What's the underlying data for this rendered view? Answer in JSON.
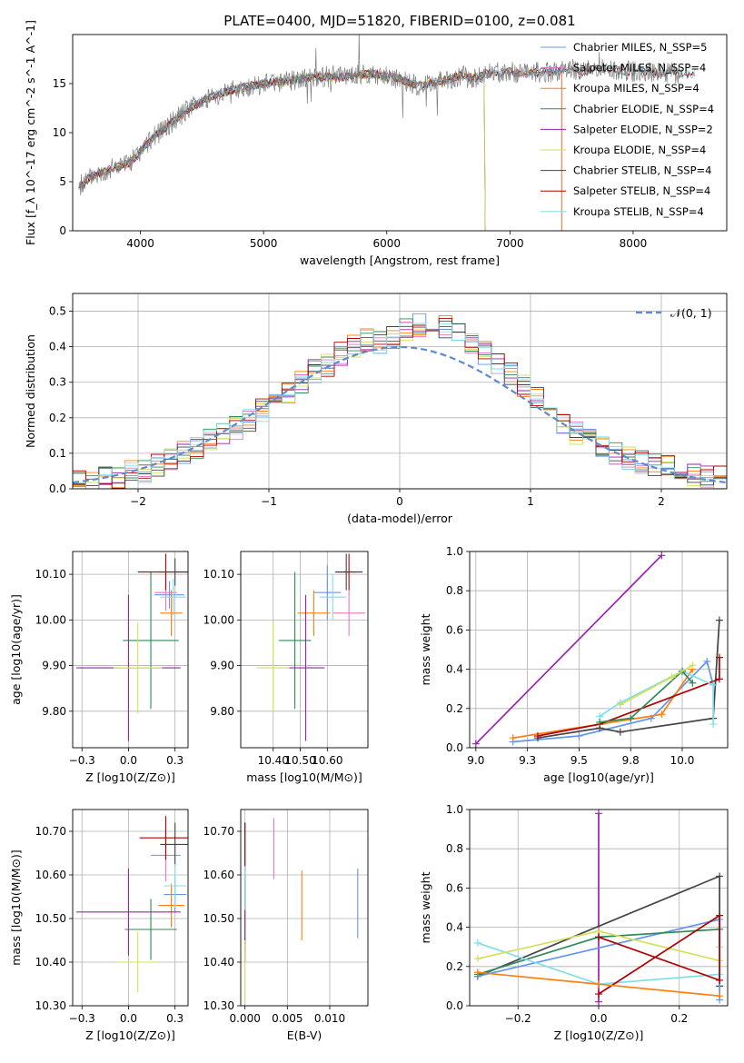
{
  "figure": {
    "title": "PLATE=0400, MJD=51820, FIBERID=0100, z=0.081"
  },
  "palette": {
    "chabrier_miles": "#6495ed",
    "salpeter_miles": "#e377c2",
    "kroupa_miles": "#ff7f0e",
    "chabrier_elodie": "#2e8b57",
    "salpeter_elodie": "#9b22b0",
    "kroupa_elodie": "#d4e157",
    "chabrier_stelib": "#444444",
    "salpeter_stelib": "#b00000",
    "kroupa_stelib": "#80deea",
    "data_spectrum": "#808080",
    "gaussian": "#5b8bd0"
  },
  "chart_data": [
    {
      "id": "spectrum",
      "type": "line",
      "xlabel": "wavelength [Angstrom, rest frame]",
      "ylabel": "Flux [f_λ 10^-17 erg cm^-2 s^-1 A^-1]",
      "xlim": [
        3450,
        8760
      ],
      "ylim": [
        0,
        20
      ],
      "xticks": [
        4000,
        5000,
        6000,
        7000,
        8000
      ],
      "yticks": [
        0,
        5,
        10,
        15
      ],
      "grid": false,
      "legend": "top-right",
      "data_spectrum": {
        "x": [
          3500,
          3600,
          3700,
          3800,
          3900,
          4000,
          4100,
          4200,
          4300,
          4400,
          4500,
          4600,
          4700,
          4800,
          4900,
          5000,
          5100,
          5200,
          5300,
          5400,
          5500,
          5600,
          5700,
          5800,
          5900,
          6000,
          6100,
          6200,
          6300,
          6400,
          6500,
          6600,
          6700,
          6800,
          6900,
          7000,
          7100,
          7200,
          7300,
          7400,
          7500,
          7600,
          7700,
          7800,
          7900,
          8000,
          8100,
          8200,
          8300,
          8400
        ],
        "y": [
          4.5,
          5.5,
          6.0,
          6.5,
          6.8,
          8.0,
          9.5,
          10.5,
          11.5,
          12.5,
          13.2,
          13.8,
          14.2,
          14.5,
          14.8,
          15.0,
          15.2,
          15.3,
          15.5,
          15.6,
          15.7,
          15.6,
          15.8,
          15.9,
          16.0,
          15.7,
          15.5,
          15.0,
          14.8,
          15.2,
          15.4,
          15.8,
          15.5,
          16.0,
          16.1,
          16.2,
          16.0,
          16.1,
          16.2,
          16.3,
          16.5,
          16.2,
          16.6,
          16.5,
          16.3,
          16.2,
          16.3,
          16.0,
          16.2,
          16.0
        ]
      },
      "series": [
        {
          "name": "Chabrier MILES, N_SSP=5",
          "color_key": "chabrier_miles",
          "xmax": 7420
        },
        {
          "name": "Salpeter MILES, N_SSP=4",
          "color_key": "salpeter_miles",
          "xmax": 7420
        },
        {
          "name": "Kroupa MILES, N_SSP=4",
          "color_key": "kroupa_miles",
          "xmax": 7420
        },
        {
          "name": "Chabrier ELODIE, N_SSP=4",
          "color_key": "chabrier_elodie",
          "xmax": 6800
        },
        {
          "name": "Salpeter ELODIE, N_SSP=2",
          "color_key": "salpeter_elodie",
          "xmax": 6800
        },
        {
          "name": "Kroupa ELODIE, N_SSP=4",
          "color_key": "kroupa_elodie",
          "xmax": 6800
        },
        {
          "name": "Chabrier STELIB, N_SSP=4",
          "color_key": "chabrier_stelib",
          "xmax": 8500
        },
        {
          "name": "Salpeter STELIB, N_SSP=4",
          "color_key": "salpeter_stelib",
          "xmax": 8500
        },
        {
          "name": "Kroupa STELIB, N_SSP=4",
          "color_key": "kroupa_stelib",
          "xmax": 8500
        }
      ]
    },
    {
      "id": "residuals",
      "type": "line",
      "xlabel": "(data-model)/error",
      "ylabel": "Normed distribution",
      "xlim": [
        -2.5,
        2.5
      ],
      "ylim": [
        0,
        0.55
      ],
      "xticks": [
        -2,
        -1,
        0,
        1,
        2
      ],
      "yticks": [
        0.0,
        0.1,
        0.2,
        0.3,
        0.4,
        0.5
      ],
      "grid": true,
      "legend": "top-right",
      "gaussian_label": "𝒩(0, 1)",
      "bins": [
        -2.5,
        -2.4,
        -2.3,
        -2.2,
        -2.1,
        -2.0,
        -1.9,
        -1.8,
        -1.7,
        -1.6,
        -1.5,
        -1.4,
        -1.3,
        -1.2,
        -1.1,
        -1.0,
        -0.9,
        -0.8,
        -0.7,
        -0.6,
        -0.5,
        -0.4,
        -0.3,
        -0.2,
        -0.1,
        0.0,
        0.1,
        0.2,
        0.3,
        0.4,
        0.5,
        0.6,
        0.7,
        0.8,
        0.9,
        1.0,
        1.1,
        1.2,
        1.3,
        1.4,
        1.5,
        1.6,
        1.7,
        1.8,
        1.9,
        2.0,
        2.1,
        2.2,
        2.3,
        2.4,
        2.5
      ],
      "base_hist": [
        0.025,
        0.02,
        0.03,
        0.035,
        0.045,
        0.05,
        0.065,
        0.08,
        0.1,
        0.12,
        0.14,
        0.16,
        0.17,
        0.19,
        0.22,
        0.24,
        0.27,
        0.3,
        0.33,
        0.35,
        0.38,
        0.4,
        0.42,
        0.41,
        0.43,
        0.45,
        0.46,
        0.47,
        0.46,
        0.44,
        0.41,
        0.38,
        0.35,
        0.32,
        0.29,
        0.26,
        0.22,
        0.19,
        0.16,
        0.14,
        0.12,
        0.1,
        0.09,
        0.075,
        0.07,
        0.06,
        0.05,
        0.04,
        0.035,
        0.03
      ]
    },
    {
      "id": "age-vs-z",
      "type": "scatter",
      "xlabel": "Z [log10(Z/Z⊙)]",
      "ylabel": "age [log10(age/yr)]",
      "xlim": [
        -0.3,
        0.32
      ],
      "ylim": [
        9.72,
        10.15
      ],
      "xticks": [
        -0.25,
        0.0,
        0.25
      ],
      "yticks": [
        9.8,
        9.9,
        10.0,
        10.1
      ],
      "grid": true,
      "points": [
        {
          "series": "chabrier_miles",
          "x": 0.22,
          "xerr": 0.08,
          "y": 10.055,
          "yerr": 0.03
        },
        {
          "series": "salpeter_miles",
          "x": 0.2,
          "xerr": 0.06,
          "y": 10.06,
          "yerr": 0.04
        },
        {
          "series": "kroupa_miles",
          "x": 0.23,
          "xerr": 0.06,
          "y": 10.015,
          "yerr": 0.05
        },
        {
          "series": "chabrier_elodie",
          "x": 0.12,
          "xerr": 0.15,
          "y": 9.955,
          "yerr": 0.15
        },
        {
          "series": "salpeter_elodie",
          "x": 0.0,
          "xerr": 0.28,
          "y": 9.895,
          "yerr": 0.16
        },
        {
          "series": "kroupa_elodie",
          "x": 0.05,
          "xerr": 0.13,
          "y": 9.895,
          "yerr": 0.1
        },
        {
          "series": "chabrier_stelib",
          "x": 0.25,
          "xerr": 0.09,
          "y": 10.105,
          "yerr": 0.03
        },
        {
          "series": "salpeter_stelib",
          "x": 0.2,
          "xerr": 0.15,
          "y": 10.105,
          "yerr": 0.04
        },
        {
          "series": "kroupa_stelib",
          "x": 0.24,
          "xerr": 0.07,
          "y": 10.05,
          "yerr": 0.04
        }
      ]
    },
    {
      "id": "age-vs-mass",
      "type": "scatter",
      "xlabel": "mass [log10(M/M⊙)]",
      "ylabel": "",
      "xlim": [
        10.28,
        10.75
      ],
      "ylim": [
        9.72,
        10.15
      ],
      "xticks": [
        10.4,
        10.5,
        10.6
      ],
      "yticks": [
        9.8,
        9.9,
        10.0,
        10.1
      ],
      "grid": true,
      "points": [
        {
          "series": "chabrier_miles",
          "x": 10.6,
          "xerr": 0.05,
          "y": 10.06,
          "yerr": 0.06
        },
        {
          "series": "salpeter_miles",
          "x": 10.68,
          "xerr": 0.06,
          "y": 10.015,
          "yerr": 0.05
        },
        {
          "series": "kroupa_miles",
          "x": 10.55,
          "xerr": 0.06,
          "y": 10.015,
          "yerr": 0.05
        },
        {
          "series": "chabrier_elodie",
          "x": 10.48,
          "xerr": 0.06,
          "y": 9.955,
          "yerr": 0.15
        },
        {
          "series": "salpeter_elodie",
          "x": 10.52,
          "xerr": 0.07,
          "y": 9.895,
          "yerr": 0.16
        },
        {
          "series": "kroupa_elodie",
          "x": 10.4,
          "xerr": 0.06,
          "y": 9.895,
          "yerr": 0.1
        },
        {
          "series": "chabrier_stelib",
          "x": 10.67,
          "xerr": 0.04,
          "y": 10.105,
          "yerr": 0.04
        },
        {
          "series": "salpeter_stelib",
          "x": 10.68,
          "xerr": 0.05,
          "y": 10.105,
          "yerr": 0.04
        },
        {
          "series": "kroupa_stelib",
          "x": 10.62,
          "xerr": 0.05,
          "y": 10.05,
          "yerr": 0.05
        }
      ]
    },
    {
      "id": "massweight-vs-age",
      "type": "line",
      "xlabel": "age [log10(age/yr)]",
      "ylabel": "mass weight",
      "xlim": [
        8.97,
        10.22
      ],
      "ylim": [
        0.0,
        1.0
      ],
      "xticks": [
        9.0,
        9.25,
        9.5,
        9.75,
        10.0
      ],
      "yticks": [
        0.0,
        0.2,
        0.4,
        0.6,
        0.8,
        1.0
      ],
      "grid": true,
      "series": [
        {
          "series": "salpeter_elodie",
          "x": [
            9.0,
            9.9
          ],
          "y": [
            0.02,
            0.98
          ]
        },
        {
          "series": "chabrier_miles",
          "x": [
            9.18,
            9.5,
            9.85,
            10.12,
            10.15
          ],
          "y": [
            0.03,
            0.06,
            0.15,
            0.44,
            0.32
          ]
        },
        {
          "series": "kroupa_miles",
          "x": [
            9.18,
            9.6,
            9.9,
            10.05
          ],
          "y": [
            0.05,
            0.12,
            0.17,
            0.4
          ]
        },
        {
          "series": "chabrier_stelib",
          "x": [
            9.3,
            9.6,
            9.7,
            10.15,
            10.18
          ],
          "y": [
            0.05,
            0.1,
            0.08,
            0.15,
            0.65
          ]
        },
        {
          "series": "salpeter_stelib",
          "x": [
            9.3,
            9.6,
            10.18,
            10.18
          ],
          "y": [
            0.06,
            0.12,
            0.35,
            0.46
          ]
        },
        {
          "series": "kroupa_stelib",
          "x": [
            9.6,
            9.7,
            10.0,
            10.15,
            10.15
          ],
          "y": [
            0.16,
            0.23,
            0.39,
            0.32,
            0.12
          ]
        },
        {
          "series": "chabrier_elodie",
          "x": [
            9.6,
            9.75,
            10.0,
            10.05
          ],
          "y": [
            0.13,
            0.15,
            0.39,
            0.33
          ]
        },
        {
          "series": "kroupa_elodie",
          "x": [
            9.7,
            9.95,
            10.05
          ],
          "y": [
            0.22,
            0.36,
            0.42
          ]
        }
      ]
    },
    {
      "id": "mass-vs-z",
      "type": "scatter",
      "xlabel": "Z [log10(Z/Z⊙)]",
      "ylabel": "mass [log10(M/M⊙)]",
      "xlim": [
        -0.3,
        0.32
      ],
      "ylim": [
        10.3,
        10.75
      ],
      "xticks": [
        -0.25,
        0.0,
        0.25
      ],
      "yticks": [
        10.3,
        10.4,
        10.5,
        10.6,
        10.7
      ],
      "grid": true,
      "points": [
        {
          "series": "chabrier_miles",
          "x": 0.25,
          "xerr": 0.06,
          "y": 10.555,
          "yerr": 0.04
        },
        {
          "series": "salpeter_miles",
          "x": 0.2,
          "xerr": 0.08,
          "y": 10.645,
          "yerr": 0.06
        },
        {
          "series": "kroupa_miles",
          "x": 0.23,
          "xerr": 0.07,
          "y": 10.53,
          "yerr": 0.05
        },
        {
          "series": "chabrier_elodie",
          "x": 0.12,
          "xerr": 0.14,
          "y": 10.475,
          "yerr": 0.07
        },
        {
          "series": "salpeter_elodie",
          "x": 0.0,
          "xerr": 0.28,
          "y": 10.515,
          "yerr": 0.1
        },
        {
          "series": "kroupa_elodie",
          "x": 0.05,
          "xerr": 0.1,
          "y": 10.4,
          "yerr": 0.07
        },
        {
          "series": "chabrier_stelib",
          "x": 0.25,
          "xerr": 0.08,
          "y": 10.67,
          "yerr": 0.05
        },
        {
          "series": "salpeter_stelib",
          "x": 0.2,
          "xerr": 0.14,
          "y": 10.685,
          "yerr": 0.05
        },
        {
          "series": "kroupa_stelib",
          "x": 0.25,
          "xerr": 0.06,
          "y": 10.575,
          "yerr": 0.05
        }
      ]
    },
    {
      "id": "mass-vs-ebv",
      "type": "scatter",
      "xlabel": "E(B-V)",
      "ylabel": "",
      "xlim": [
        -0.0005,
        0.0145
      ],
      "ylim": [
        10.3,
        10.75
      ],
      "xticks": [
        0.0,
        0.005,
        0.01
      ],
      "yticks": [
        10.3,
        10.4,
        10.5,
        10.6,
        10.7
      ],
      "grid": true,
      "points": [
        {
          "series": "chabrier_miles",
          "x": 0.0133,
          "y": 10.535,
          "yerr": 0.08
        },
        {
          "series": "salpeter_miles",
          "x": 0.0034,
          "y": 10.66,
          "yerr": 0.07
        },
        {
          "series": "kroupa_miles",
          "x": 0.0067,
          "y": 10.53,
          "yerr": 0.08
        },
        {
          "series": "chabrier_elodie",
          "x": 0.0,
          "y": 10.52,
          "yerr": 0.1
        },
        {
          "series": "salpeter_elodie",
          "x": 0.0,
          "y": 10.5,
          "yerr": 0.1
        },
        {
          "series": "kroupa_elodie",
          "x": 0.0,
          "y": 10.38,
          "yerr": 0.07
        },
        {
          "series": "chabrier_stelib",
          "x": 0.0,
          "y": 10.67,
          "yerr": 0.05
        },
        {
          "series": "salpeter_stelib",
          "x": 0.0,
          "y": 10.67,
          "yerr": 0.05
        },
        {
          "series": "kroupa_stelib",
          "x": 0.0,
          "y": 10.57,
          "yerr": 0.05
        }
      ]
    },
    {
      "id": "massweight-vs-z",
      "type": "line",
      "xlabel": "Z [log10(Z/Z⊙)]",
      "ylabel": "mass weight",
      "xlim": [
        -0.32,
        0.32
      ],
      "ylim": [
        0.0,
        1.0
      ],
      "xticks": [
        -0.2,
        0.0,
        0.2
      ],
      "yticks": [
        0.0,
        0.2,
        0.4,
        0.6,
        0.8,
        1.0
      ],
      "grid": true,
      "series": [
        {
          "series": "salpeter_elodie",
          "x": [
            0.0,
            0.0
          ],
          "y": [
            0.02,
            0.98
          ]
        },
        {
          "series": "chabrier_stelib",
          "x": [
            -0.3,
            0.3,
            0.3
          ],
          "y": [
            0.15,
            0.66,
            0.1
          ]
        },
        {
          "series": "chabrier_miles",
          "x": [
            -0.3,
            0.3,
            0.3
          ],
          "y": [
            0.15,
            0.44,
            0.03
          ]
        },
        {
          "series": "chabrier_elodie",
          "x": [
            -0.3,
            0.0,
            0.3
          ],
          "y": [
            0.16,
            0.35,
            0.39
          ]
        },
        {
          "series": "kroupa_stelib",
          "x": [
            -0.3,
            0.0,
            0.3,
            0.3
          ],
          "y": [
            0.32,
            0.11,
            0.16,
            0.3
          ]
        },
        {
          "series": "kroupa_elodie",
          "x": [
            -0.3,
            0.0,
            0.3
          ],
          "y": [
            0.24,
            0.38,
            0.23
          ]
        },
        {
          "series": "salpeter_stelib",
          "x": [
            0.0,
            0.3,
            0.3,
            0.0
          ],
          "y": [
            0.06,
            0.46,
            0.13,
            0.35
          ]
        },
        {
          "series": "kroupa_miles",
          "x": [
            -0.3,
            0.0,
            0.3
          ],
          "y": [
            0.17,
            0.11,
            0.05
          ]
        }
      ]
    }
  ]
}
